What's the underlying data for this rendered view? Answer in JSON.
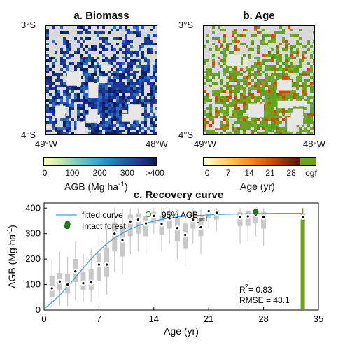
{
  "panel_a": {
    "title": "a. Biomass",
    "lat_top": "3°S",
    "lat_bottom": "4°S",
    "lon_left": "49°W",
    "lon_right": "48°W",
    "colorbar": {
      "ticks": [
        "0",
        "100",
        "200",
        "300",
        ">400"
      ],
      "label_main": "AGB (Mg ha",
      "label_sup": "-1",
      "label_end": ")",
      "colors": [
        "#f7fcb9",
        "#c7e9b4",
        "#7fcdbb",
        "#41b6c4",
        "#1d91c0",
        "#225ea8",
        "#253494",
        "#081d58"
      ]
    }
  },
  "panel_b": {
    "title": "b. Age",
    "lat_top": "3°S",
    "lat_bottom": "4°S",
    "lon_left": "49°W",
    "lon_right": "48°W",
    "colorbar": {
      "ticks": [
        "0",
        "7",
        "14",
        "21",
        "28",
        "ogf"
      ],
      "label": "Age (yr)",
      "colors": [
        "#ffffe5",
        "#fee391",
        "#fec44f",
        "#fe9929",
        "#ec7014",
        "#cc4c02",
        "#8c2d04",
        "#4d1a02",
        "#6aa121"
      ]
    }
  },
  "panel_c": {
    "title": "c. Recovery curve",
    "legend": {
      "fitted": "fitted curve",
      "agb95_main": "95% AGB",
      "agb95_sub": "grid",
      "intact": "Intact forest"
    },
    "stats": {
      "r2_main": "R",
      "r2_sup": "2",
      "r2_val": " = 0.83",
      "rmse": "RMSE = 48.1"
    },
    "colors": {
      "curve": "#4a9fd6",
      "box": "#c8c8c8",
      "intact": "#1a7a1a",
      "ogf": "#6aa121"
    }
  },
  "chart_data": {
    "type": "scatter",
    "title": "c. Recovery curve",
    "xlabel": "Age (yr)",
    "ylabel_main": "AGB (Mg ha",
    "ylabel_sup": "-1",
    "ylabel_end": ")",
    "xlim": [
      0,
      35
    ],
    "ylim": [
      0,
      420
    ],
    "xticks": [
      0,
      7,
      14,
      21,
      28,
      35
    ],
    "yticks": [
      0,
      100,
      200,
      300,
      400
    ],
    "grid": false,
    "legend_position": "top-left",
    "median_points": {
      "x": [
        1,
        2,
        3,
        4,
        5,
        6,
        7,
        8,
        9,
        10,
        11,
        12,
        13,
        14,
        15,
        16,
        17,
        18,
        19,
        20,
        21,
        22,
        25,
        26,
        27,
        28,
        33
      ],
      "y": [
        85,
        112,
        100,
        152,
        105,
        108,
        178,
        178,
        300,
        275,
        348,
        355,
        340,
        370,
        338,
        360,
        322,
        295,
        355,
        325,
        388,
        382,
        365,
        368,
        375,
        365,
        365
      ]
    },
    "fitted_curve": {
      "x": [
        0,
        1,
        2,
        3,
        4,
        5,
        6,
        7,
        8,
        9,
        10,
        11,
        12,
        13,
        14,
        15,
        16,
        17,
        18,
        20,
        22,
        24,
        26,
        28,
        30,
        33
      ],
      "y": [
        5,
        30,
        58,
        92,
        128,
        165,
        200,
        232,
        260,
        283,
        302,
        318,
        331,
        341,
        349,
        356,
        361,
        365,
        368,
        372,
        375,
        377,
        378,
        379,
        380,
        380
      ]
    },
    "boxes": [
      {
        "x": 1,
        "q1": 50,
        "q3": 135,
        "lo": 10,
        "hi": 200
      },
      {
        "x": 2,
        "q1": 80,
        "q3": 145,
        "lo": 20,
        "hi": 230
      },
      {
        "x": 3,
        "q1": 65,
        "q3": 140,
        "lo": 15,
        "hi": 210
      },
      {
        "x": 4,
        "q1": 110,
        "q3": 200,
        "lo": 40,
        "hi": 270
      },
      {
        "x": 5,
        "q1": 80,
        "q3": 150,
        "lo": 30,
        "hi": 220
      },
      {
        "x": 6,
        "q1": 80,
        "q3": 160,
        "lo": 30,
        "hi": 240
      },
      {
        "x": 7,
        "q1": 115,
        "q3": 225,
        "lo": 50,
        "hi": 300
      },
      {
        "x": 8,
        "q1": 130,
        "q3": 245,
        "lo": 60,
        "hi": 320
      },
      {
        "x": 9,
        "q1": 230,
        "q3": 345,
        "lo": 150,
        "hi": 400
      },
      {
        "x": 10,
        "q1": 210,
        "q3": 330,
        "lo": 140,
        "hi": 400
      },
      {
        "x": 11,
        "q1": 290,
        "q3": 375,
        "lo": 220,
        "hi": 400
      },
      {
        "x": 12,
        "q1": 300,
        "q3": 380,
        "lo": 230,
        "hi": 400
      },
      {
        "x": 13,
        "q1": 290,
        "q3": 370,
        "lo": 220,
        "hi": 395
      },
      {
        "x": 14,
        "q1": 340,
        "q3": 385,
        "lo": 300,
        "hi": 400
      },
      {
        "x": 15,
        "q1": 295,
        "q3": 370,
        "lo": 230,
        "hi": 400
      },
      {
        "x": 16,
        "q1": 320,
        "q3": 385,
        "lo": 260,
        "hi": 400
      },
      {
        "x": 17,
        "q1": 270,
        "q3": 360,
        "lo": 200,
        "hi": 395
      },
      {
        "x": 18,
        "q1": 240,
        "q3": 340,
        "lo": 170,
        "hi": 390
      },
      {
        "x": 19,
        "q1": 320,
        "q3": 385,
        "lo": 260,
        "hi": 400
      },
      {
        "x": 20,
        "q1": 290,
        "q3": 360,
        "lo": 220,
        "hi": 395
      },
      {
        "x": 21,
        "q1": 360,
        "q3": 395,
        "lo": 320,
        "hi": 400
      },
      {
        "x": 22,
        "q1": 355,
        "q3": 392,
        "lo": 310,
        "hi": 400
      },
      {
        "x": 25,
        "q1": 330,
        "q3": 385,
        "lo": 260,
        "hi": 400
      },
      {
        "x": 26,
        "q1": 330,
        "q3": 390,
        "lo": 270,
        "hi": 400
      },
      {
        "x": 27,
        "q1": 340,
        "q3": 392,
        "lo": 290,
        "hi": 400
      },
      {
        "x": 28,
        "q1": 320,
        "q3": 385,
        "lo": 250,
        "hi": 400
      }
    ],
    "intact_points": {
      "x": [
        3,
        27
      ],
      "y": [
        338,
        385
      ]
    },
    "ogf_box": {
      "x": 33,
      "q1": 280,
      "q3": 380,
      "lo": 0,
      "hi": 400
    }
  }
}
